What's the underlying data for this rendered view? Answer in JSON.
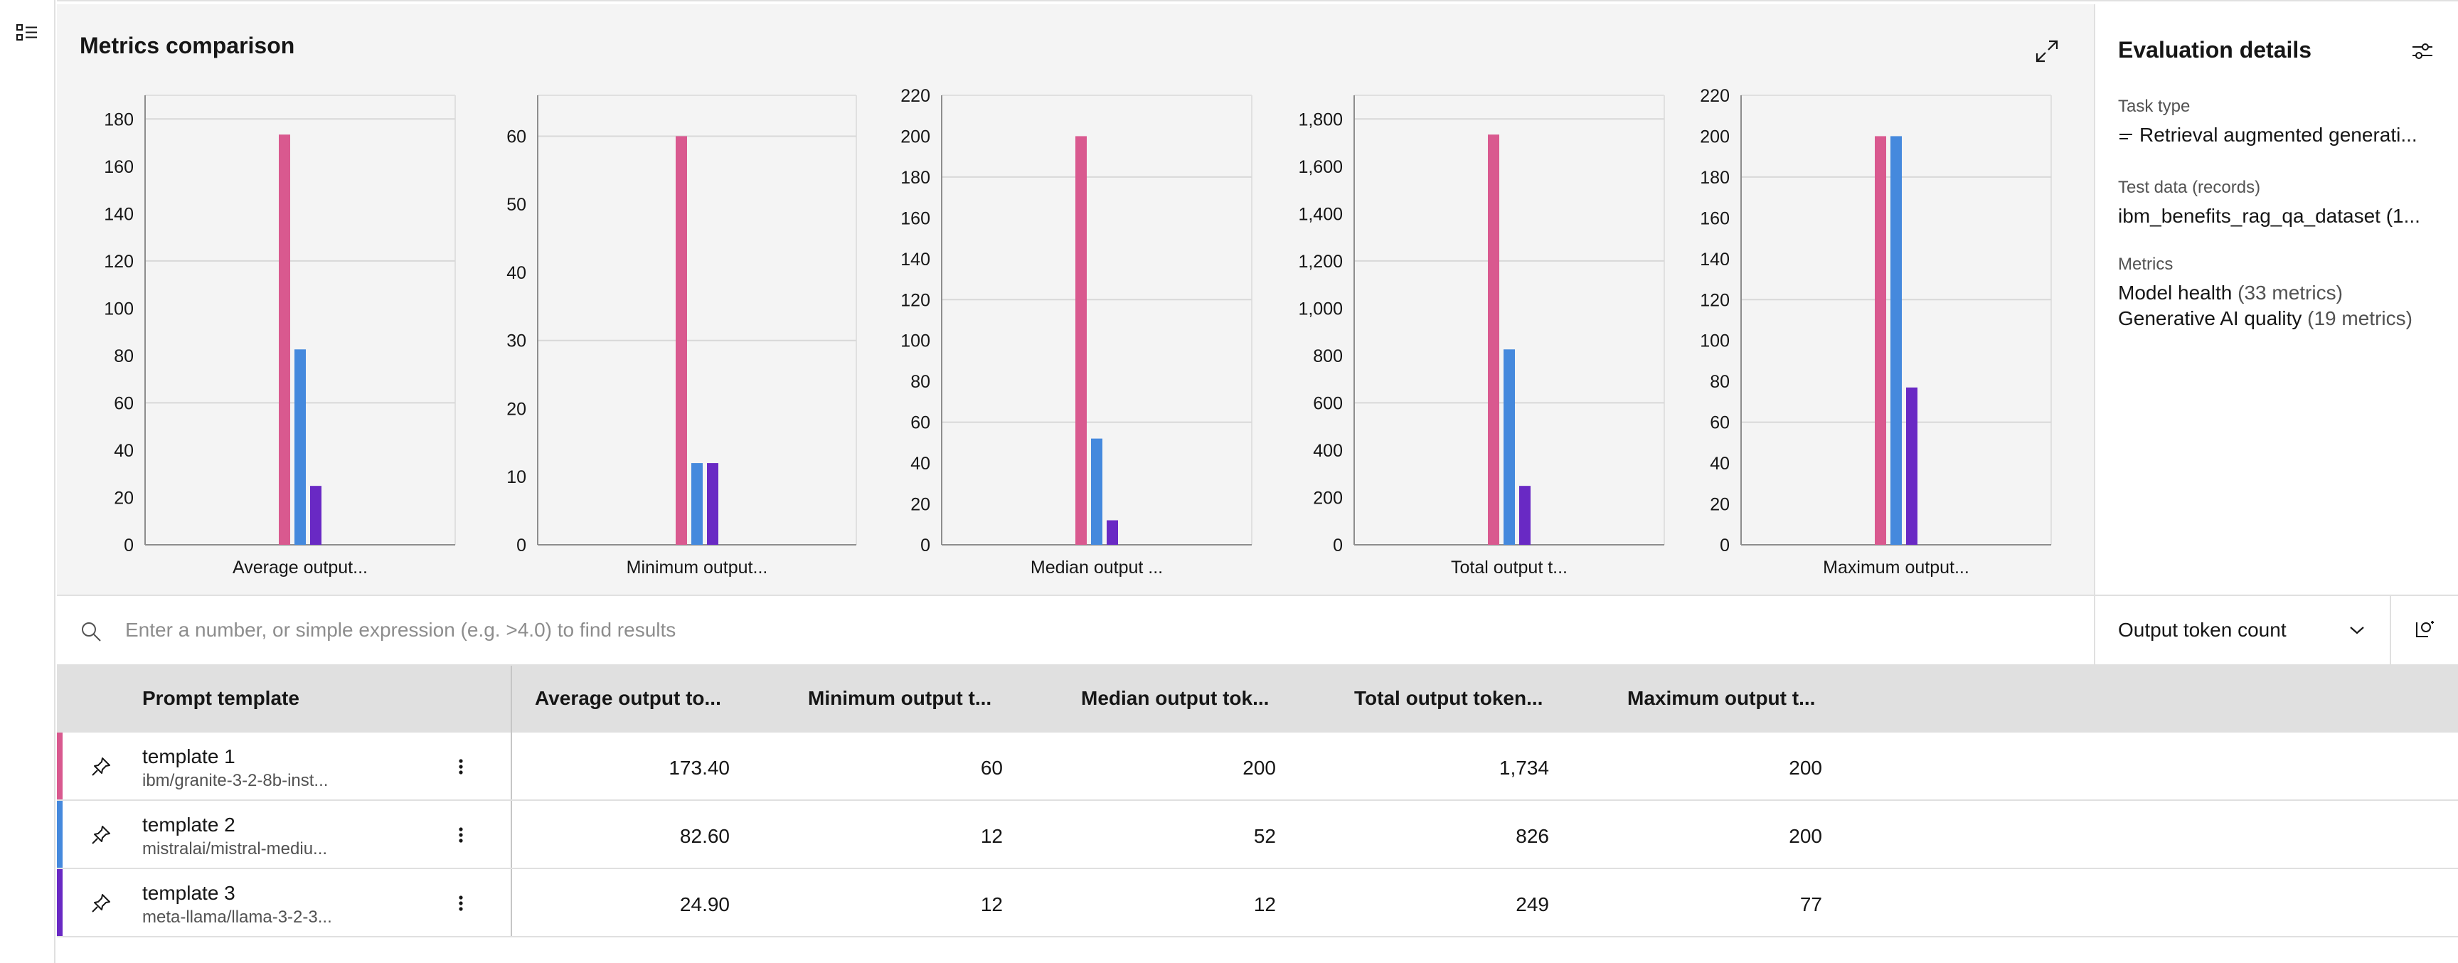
{
  "panel": {
    "title": "Metrics comparison"
  },
  "colors": {
    "template_1": "#d9598f",
    "template_2": "#4589dd",
    "template_3": "#6929c4"
  },
  "chart_data": [
    {
      "type": "bar",
      "xlabel": "Average output...",
      "ylim": [
        0,
        190
      ],
      "yticks": [
        0,
        20,
        40,
        60,
        80,
        100,
        120,
        140,
        160,
        180
      ],
      "ytick_labels": [
        "0",
        "20",
        "40",
        "60",
        "80",
        "100",
        "120",
        "140",
        "160",
        "180"
      ],
      "series": [
        {
          "name": "template 1",
          "color": "#d9598f",
          "values": [
            173.4
          ]
        },
        {
          "name": "template 2",
          "color": "#4589dd",
          "values": [
            82.6
          ]
        },
        {
          "name": "template 3",
          "color": "#6929c4",
          "values": [
            24.9
          ]
        }
      ],
      "grid": true
    },
    {
      "type": "bar",
      "xlabel": "Minimum output...",
      "ylim": [
        0,
        66
      ],
      "yticks": [
        0,
        10,
        20,
        30,
        40,
        50,
        60
      ],
      "ytick_labels": [
        "0",
        "10",
        "20",
        "30",
        "40",
        "50",
        "60"
      ],
      "series": [
        {
          "name": "template 1",
          "color": "#d9598f",
          "values": [
            60
          ]
        },
        {
          "name": "template 2",
          "color": "#4589dd",
          "values": [
            12
          ]
        },
        {
          "name": "template 3",
          "color": "#6929c4",
          "values": [
            12
          ]
        }
      ],
      "grid": true
    },
    {
      "type": "bar",
      "xlabel": "Median output ...",
      "ylim": [
        0,
        220
      ],
      "yticks": [
        0,
        20,
        40,
        60,
        80,
        100,
        120,
        140,
        160,
        180,
        200,
        220
      ],
      "ytick_labels": [
        "0",
        "20",
        "40",
        "60",
        "80",
        "100",
        "120",
        "140",
        "160",
        "180",
        "200",
        "220"
      ],
      "series": [
        {
          "name": "template 1",
          "color": "#d9598f",
          "values": [
            200
          ]
        },
        {
          "name": "template 2",
          "color": "#4589dd",
          "values": [
            52
          ]
        },
        {
          "name": "template 3",
          "color": "#6929c4",
          "values": [
            12
          ]
        }
      ],
      "grid": true
    },
    {
      "type": "bar",
      "xlabel": "Total output t...",
      "ylim": [
        0,
        1900
      ],
      "yticks": [
        0,
        200,
        400,
        600,
        800,
        1000,
        1200,
        1400,
        1600,
        1800
      ],
      "ytick_labels": [
        "0",
        "200",
        "400",
        "600",
        "800",
        "1,000",
        "1,200",
        "1,400",
        "1,600",
        "1,800"
      ],
      "series": [
        {
          "name": "template 1",
          "color": "#d9598f",
          "values": [
            1734
          ]
        },
        {
          "name": "template 2",
          "color": "#4589dd",
          "values": [
            826
          ]
        },
        {
          "name": "template 3",
          "color": "#6929c4",
          "values": [
            249
          ]
        }
      ],
      "grid": true
    },
    {
      "type": "bar",
      "xlabel": "Maximum output...",
      "ylim": [
        0,
        220
      ],
      "yticks": [
        0,
        20,
        40,
        60,
        80,
        100,
        120,
        140,
        160,
        180,
        200,
        220
      ],
      "ytick_labels": [
        "0",
        "20",
        "40",
        "60",
        "80",
        "100",
        "120",
        "140",
        "160",
        "180",
        "200",
        "220"
      ],
      "series": [
        {
          "name": "template 1",
          "color": "#d9598f",
          "values": [
            200
          ]
        },
        {
          "name": "template 2",
          "color": "#4589dd",
          "values": [
            200
          ]
        },
        {
          "name": "template 3",
          "color": "#6929c4",
          "values": [
            77
          ]
        }
      ],
      "grid": true
    }
  ],
  "details": {
    "title": "Evaluation details",
    "task_type_label": "Task type",
    "task_type_icon": "lines-icon",
    "task_type_value": "Retrieval augmented generati...",
    "test_data_label": "Test data (records)",
    "test_data_value": "ibm_benefits_rag_qa_dataset (1...",
    "metrics_label": "Metrics",
    "metric_groups": [
      {
        "name": "Model health",
        "count": "(33 metrics)"
      },
      {
        "name": "Generative AI quality",
        "count": "(19 metrics)"
      }
    ]
  },
  "search": {
    "placeholder": "Enter a number, or simple expression (e.g. >4.0) to find results",
    "value": ""
  },
  "metric_select": {
    "selected": "Output token count"
  },
  "table": {
    "headers": [
      "Prompt template",
      "Average output to...",
      "Minimum output t...",
      "Median output tok...",
      "Total output token...",
      "Maximum output t..."
    ],
    "rows": [
      {
        "name": "template 1",
        "model": "ibm/granite-3-2-8b-inst...",
        "color": "#d9598f",
        "values": [
          "173.40",
          "60",
          "200",
          "1,734",
          "200"
        ]
      },
      {
        "name": "template 2",
        "model": "mistralai/mistral-mediu...",
        "color": "#4589dd",
        "values": [
          "82.60",
          "12",
          "52",
          "826",
          "200"
        ]
      },
      {
        "name": "template 3",
        "model": "meta-llama/llama-3-2-3...",
        "color": "#6929c4",
        "values": [
          "24.90",
          "12",
          "12",
          "249",
          "77"
        ]
      }
    ]
  }
}
